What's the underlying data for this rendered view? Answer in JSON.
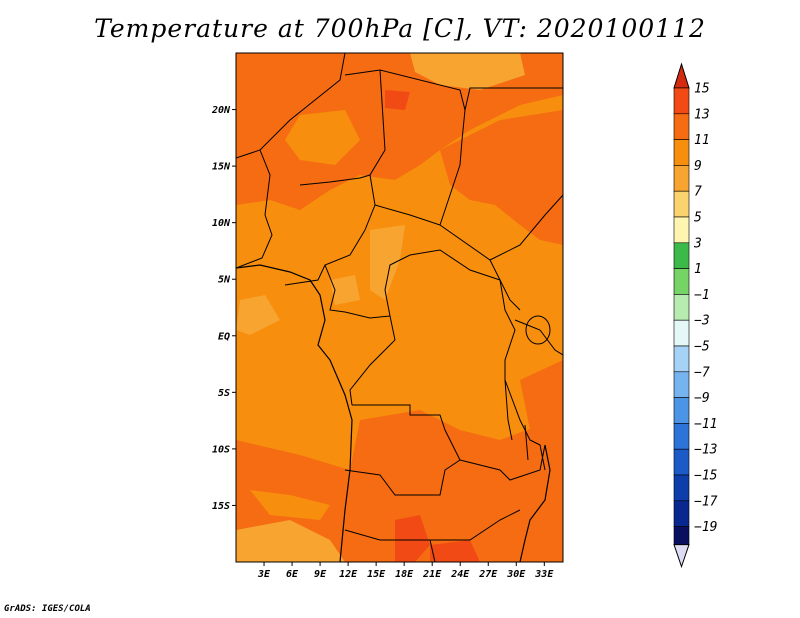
{
  "title": "Temperature at 700hPa [C], VT: 2020100112",
  "credit": "GrADS: IGES/COLA",
  "map": {
    "lon_min": 0,
    "lon_max": 35,
    "lat_min": -20,
    "lat_max": 25,
    "lat_ticks": [
      {
        "value": 20,
        "label": "20N"
      },
      {
        "value": 15,
        "label": "15N"
      },
      {
        "value": 10,
        "label": "10N"
      },
      {
        "value": 5,
        "label": "5N"
      },
      {
        "value": 0,
        "label": "EQ"
      },
      {
        "value": -5,
        "label": "5S"
      },
      {
        "value": -10,
        "label": "10S"
      },
      {
        "value": -15,
        "label": "15S"
      }
    ],
    "lon_ticks": [
      {
        "value": 3,
        "label": "3E"
      },
      {
        "value": 6,
        "label": "6E"
      },
      {
        "value": 9,
        "label": "9E"
      },
      {
        "value": 12,
        "label": "12E"
      },
      {
        "value": 15,
        "label": "15E"
      },
      {
        "value": 18,
        "label": "18E"
      },
      {
        "value": 21,
        "label": "21E"
      },
      {
        "value": 24,
        "label": "24E"
      },
      {
        "value": 27,
        "label": "27E"
      },
      {
        "value": 30,
        "label": "30E"
      },
      {
        "value": 33,
        "label": "33E"
      }
    ]
  },
  "colorbar": {
    "labels": [
      "15",
      "13",
      "11",
      "9",
      "7",
      "5",
      "3",
      "1",
      "−1",
      "−3",
      "−5",
      "−7",
      "−9",
      "−11",
      "−13",
      "−15",
      "−17",
      "−19"
    ],
    "colors": {
      "above_15": "#d42a10",
      "13_15": "#f24a14",
      "11_13": "#f56c12",
      "9_11": "#f88e0e",
      "7_9": "#f8a430",
      "5_7": "#fbd36e",
      "3_5": "#fef5b0",
      "1_3": "#3db94a",
      "m1_1": "#76d466",
      "m3_m1": "#b6ecb0",
      "m5_m3": "#e4f8f8",
      "m7_m5": "#a6d2f6",
      "m9_m7": "#76b4f0",
      "m11_m9": "#4c94e6",
      "m13_m11": "#2c74d8",
      "m15_m13": "#1c5ac8",
      "m17_m15": "#0e3eaa",
      "m19_m17": "#082890",
      "below_m19": "#0a1060",
      "below_arrow": "#dcdcf4"
    }
  }
}
